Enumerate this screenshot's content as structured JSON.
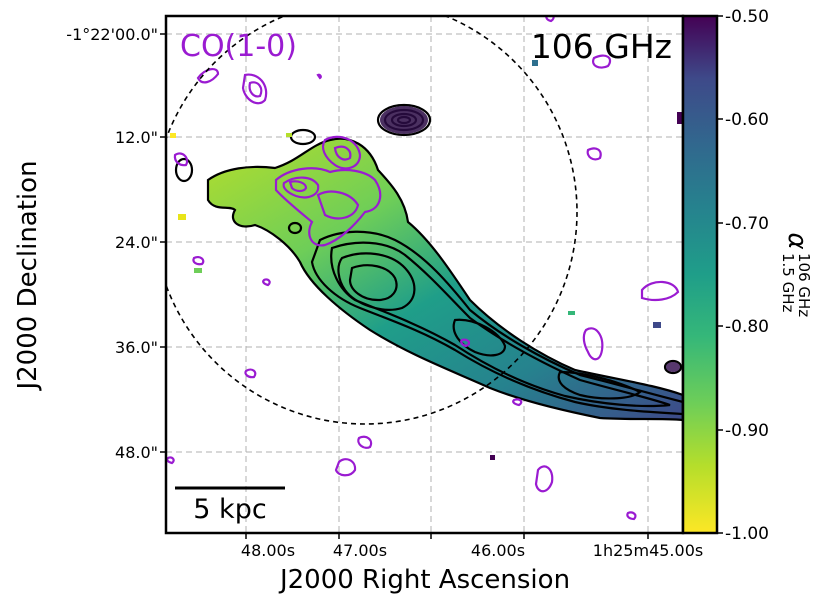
{
  "panel": {
    "tracer_label": "CO(1-0)",
    "frequency_label": "106 GHz",
    "scalebar_label": "5 kpc",
    "colors": {
      "tracer": "#9a1bd1",
      "continuum_contours": "#000000",
      "beam_circle": "#000000",
      "grid": "#b0b0b0"
    }
  },
  "axes": {
    "xlabel": "J2000 Right Ascension",
    "ylabel": "J2000 Declination",
    "x_ticks": [
      "48.00s",
      "47.00s",
      "46.00s",
      "1h25m45.00s"
    ],
    "y_ticks": [
      "-1°22'00.0\"",
      "12.0\"",
      "24.0\"",
      "36.0\"",
      "48.0\""
    ],
    "grid": "dashed"
  },
  "colorbar": {
    "colormap": "viridis (reversed)",
    "range": [
      -1.0,
      -0.5
    ],
    "ticks": [
      "-0.50",
      "-0.60",
      "-0.70",
      "-0.80",
      "-0.90",
      "-1.00"
    ],
    "label_symbol": "α",
    "label_superscript": "106 GHz",
    "label_subscript": "1.5 GHz"
  }
}
